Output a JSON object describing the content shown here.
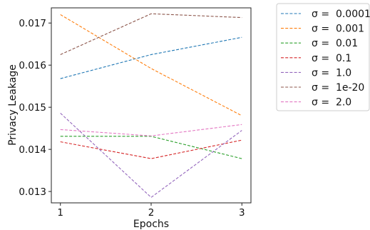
{
  "chart_data": {
    "type": "line",
    "xlabel": "Epochs",
    "ylabel": "Privacy Leakage",
    "x": [
      1,
      2,
      3
    ],
    "x_ticks": [
      "1",
      "2",
      "3"
    ],
    "y_ticks": [
      "0.013",
      "0.014",
      "0.015",
      "0.016",
      "0.017"
    ],
    "y_tick_values": [
      0.013,
      0.014,
      0.015,
      0.016,
      0.017
    ],
    "xlim": [
      0.9,
      3.1
    ],
    "ylim": [
      0.01273,
      0.01736
    ],
    "grid": false,
    "legend_placement": "outside-right",
    "line_style": "dashed",
    "series": [
      {
        "name": "σ =  0.0001",
        "color": "#1f77b4",
        "values": [
          0.01568,
          0.01625,
          0.01666
        ]
      },
      {
        "name": "σ =  0.001",
        "color": "#ff7f0e",
        "values": [
          0.0172,
          0.01592,
          0.0148
        ]
      },
      {
        "name": "σ =  0.01",
        "color": "#2ca02c",
        "values": [
          0.01431,
          0.01431,
          0.01378
        ]
      },
      {
        "name": "σ =  0.1",
        "color": "#d62728",
        "values": [
          0.01418,
          0.01378,
          0.01422
        ]
      },
      {
        "name": "σ =  1.0",
        "color": "#9467bd",
        "values": [
          0.01486,
          0.01286,
          0.01445
        ]
      },
      {
        "name": "σ =  1e-20",
        "color": "#8c564b",
        "values": [
          0.01625,
          0.01722,
          0.01713
        ]
      },
      {
        "name": "σ =  2.0",
        "color": "#e377c2",
        "values": [
          0.01447,
          0.01432,
          0.01459
        ]
      }
    ]
  }
}
